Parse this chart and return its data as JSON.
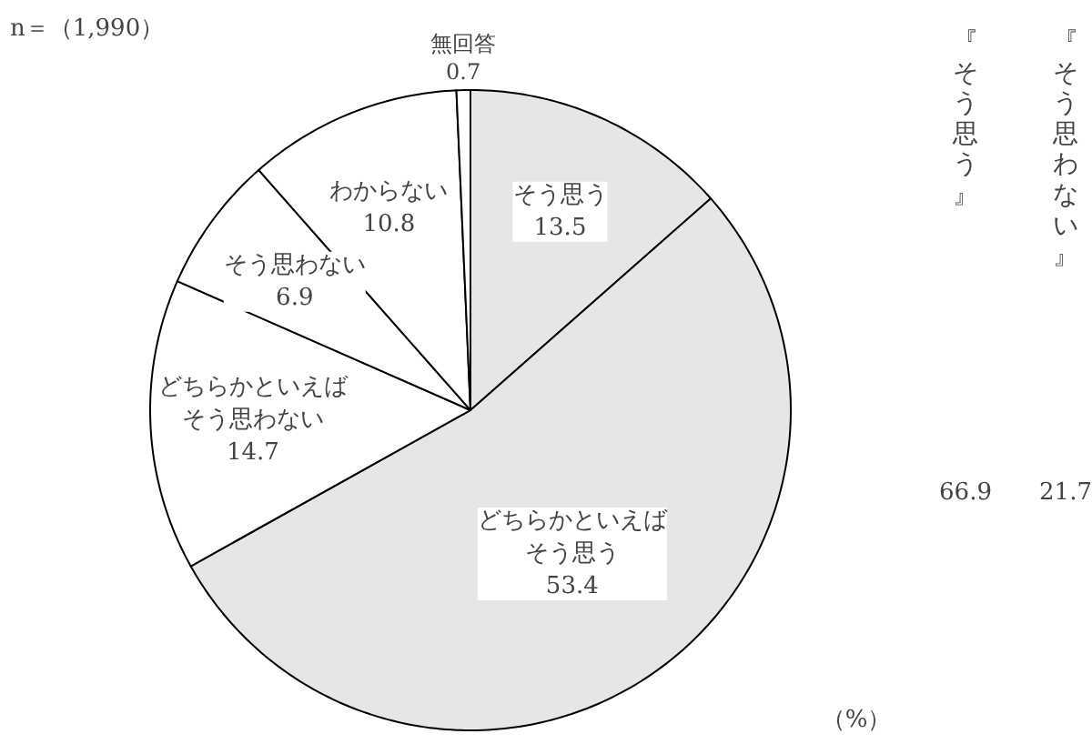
{
  "chart_data": {
    "type": "pie",
    "categories": [
      "そう思う",
      "どちらかといえばそう思う",
      "どちらかといえばそう思わない",
      "そう思わない",
      "わからない",
      "無回答"
    ],
    "values": [
      13.5,
      53.4,
      14.7,
      6.9,
      10.8,
      0.7
    ],
    "colors": [
      "#e6e6e6",
      "#e6e6e6",
      "#ffffff",
      "#ffffff",
      "#ffffff",
      "#ffffff"
    ],
    "data_labels": true,
    "annotations": [
      "n＝（1,990）",
      "（%）",
      "『そう思う』",
      "66.9",
      "『そう思わない』",
      "21.7"
    ]
  }
}
